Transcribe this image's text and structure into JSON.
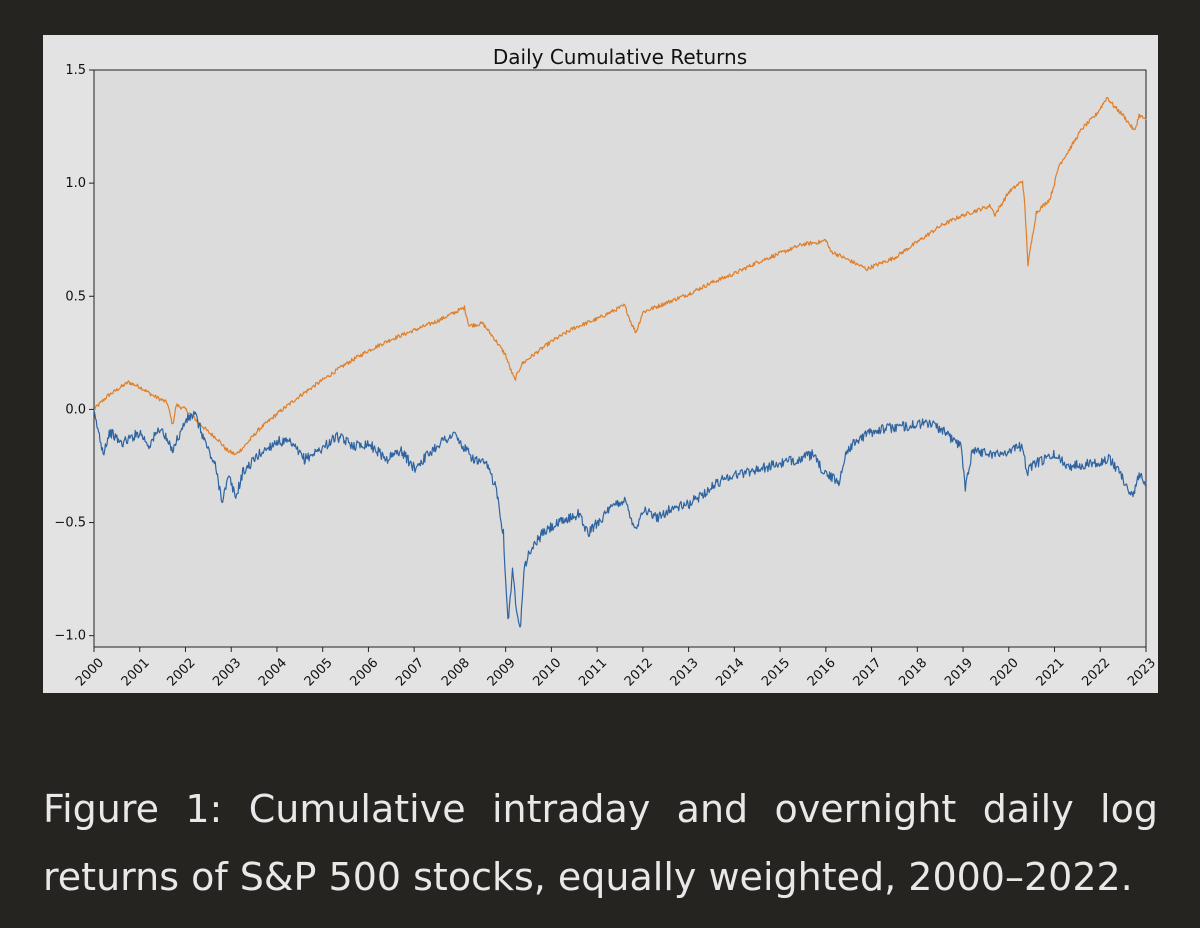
{
  "colors": {
    "page_background": "#262421",
    "panel_background": "#e3e3e3",
    "plot_background": "#dcdcdc",
    "caption_text": "#e8e8e8"
  },
  "chart_data": {
    "type": "line",
    "title": "Daily Cumulative Returns",
    "xlabel": "",
    "ylabel": "",
    "x_ticks": [
      "2000",
      "2001",
      "2002",
      "2003",
      "2004",
      "2005",
      "2006",
      "2007",
      "2008",
      "2009",
      "2010",
      "2011",
      "2012",
      "2013",
      "2014",
      "2015",
      "2016",
      "2017",
      "2018",
      "2019",
      "2020",
      "2021",
      "2022",
      "2023"
    ],
    "y_ticks": [
      -1.0,
      -0.5,
      0.0,
      0.5,
      1.0,
      1.5
    ],
    "y_tick_labels": [
      "−1.0",
      "−0.5",
      "0.0",
      "0.5",
      "1.0",
      "1.5"
    ],
    "xlim": [
      2000.0,
      2023.0
    ],
    "ylim": [
      -1.05,
      1.5
    ],
    "grid": false,
    "legend": "none",
    "series": [
      {
        "color": "#e07f27",
        "points": [
          [
            2000.0,
            0.0
          ],
          [
            2000.3,
            0.06
          ],
          [
            2000.6,
            0.1
          ],
          [
            2000.75,
            0.12
          ],
          [
            2001.0,
            0.1
          ],
          [
            2001.3,
            0.06
          ],
          [
            2001.6,
            0.03
          ],
          [
            2001.72,
            -0.07
          ],
          [
            2001.8,
            0.02
          ],
          [
            2002.0,
            0.0
          ],
          [
            2002.3,
            -0.06
          ],
          [
            2002.5,
            -0.1
          ],
          [
            2002.7,
            -0.13
          ],
          [
            2002.9,
            -0.18
          ],
          [
            2003.1,
            -0.2
          ],
          [
            2003.3,
            -0.16
          ],
          [
            2003.6,
            -0.09
          ],
          [
            2004.0,
            -0.02
          ],
          [
            2004.5,
            0.06
          ],
          [
            2005.0,
            0.13
          ],
          [
            2005.5,
            0.2
          ],
          [
            2006.0,
            0.26
          ],
          [
            2006.5,
            0.31
          ],
          [
            2007.0,
            0.35
          ],
          [
            2007.5,
            0.39
          ],
          [
            2007.9,
            0.43
          ],
          [
            2008.1,
            0.45
          ],
          [
            2008.2,
            0.37
          ],
          [
            2008.5,
            0.38
          ],
          [
            2008.8,
            0.3
          ],
          [
            2009.0,
            0.24
          ],
          [
            2009.1,
            0.18
          ],
          [
            2009.2,
            0.13
          ],
          [
            2009.35,
            0.2
          ],
          [
            2009.6,
            0.24
          ],
          [
            2010.0,
            0.3
          ],
          [
            2010.5,
            0.36
          ],
          [
            2011.0,
            0.4
          ],
          [
            2011.4,
            0.44
          ],
          [
            2011.6,
            0.46
          ],
          [
            2011.75,
            0.38
          ],
          [
            2011.85,
            0.34
          ],
          [
            2012.0,
            0.43
          ],
          [
            2012.5,
            0.47
          ],
          [
            2013.0,
            0.51
          ],
          [
            2013.5,
            0.56
          ],
          [
            2014.0,
            0.6
          ],
          [
            2014.5,
            0.65
          ],
          [
            2015.0,
            0.69
          ],
          [
            2015.5,
            0.73
          ],
          [
            2015.9,
            0.74
          ],
          [
            2016.0,
            0.75
          ],
          [
            2016.1,
            0.7
          ],
          [
            2016.5,
            0.66
          ],
          [
            2016.9,
            0.62
          ],
          [
            2017.0,
            0.63
          ],
          [
            2017.5,
            0.67
          ],
          [
            2018.0,
            0.74
          ],
          [
            2018.5,
            0.81
          ],
          [
            2018.9,
            0.85
          ],
          [
            2019.3,
            0.88
          ],
          [
            2019.6,
            0.9
          ],
          [
            2019.7,
            0.86
          ],
          [
            2020.0,
            0.96
          ],
          [
            2020.3,
            1.01
          ],
          [
            2020.35,
            0.9
          ],
          [
            2020.42,
            0.64
          ],
          [
            2020.6,
            0.87
          ],
          [
            2020.9,
            0.93
          ],
          [
            2021.0,
            1.0
          ],
          [
            2021.1,
            1.08
          ],
          [
            2021.3,
            1.14
          ],
          [
            2021.6,
            1.24
          ],
          [
            2021.9,
            1.3
          ],
          [
            2022.0,
            1.33
          ],
          [
            2022.15,
            1.38
          ],
          [
            2022.3,
            1.34
          ],
          [
            2022.5,
            1.3
          ],
          [
            2022.75,
            1.23
          ],
          [
            2022.85,
            1.3
          ],
          [
            2023.0,
            1.28
          ]
        ]
      },
      {
        "color": "#2f64a0",
        "points": [
          [
            2000.0,
            -0.02
          ],
          [
            2000.1,
            -0.1
          ],
          [
            2000.2,
            -0.19
          ],
          [
            2000.35,
            -0.1
          ],
          [
            2000.6,
            -0.15
          ],
          [
            2000.85,
            -0.12
          ],
          [
            2001.0,
            -0.1
          ],
          [
            2001.2,
            -0.16
          ],
          [
            2001.45,
            -0.08
          ],
          [
            2001.7,
            -0.18
          ],
          [
            2001.9,
            -0.1
          ],
          [
            2002.0,
            -0.05
          ],
          [
            2002.2,
            -0.02
          ],
          [
            2002.35,
            -0.1
          ],
          [
            2002.5,
            -0.18
          ],
          [
            2002.65,
            -0.25
          ],
          [
            2002.8,
            -0.4
          ],
          [
            2002.95,
            -0.3
          ],
          [
            2003.1,
            -0.39
          ],
          [
            2003.25,
            -0.28
          ],
          [
            2003.6,
            -0.2
          ],
          [
            2004.0,
            -0.14
          ],
          [
            2004.3,
            -0.15
          ],
          [
            2004.6,
            -0.22
          ],
          [
            2005.0,
            -0.17
          ],
          [
            2005.3,
            -0.12
          ],
          [
            2005.7,
            -0.16
          ],
          [
            2006.0,
            -0.15
          ],
          [
            2006.4,
            -0.22
          ],
          [
            2006.7,
            -0.18
          ],
          [
            2007.0,
            -0.26
          ],
          [
            2007.3,
            -0.2
          ],
          [
            2007.6,
            -0.14
          ],
          [
            2007.9,
            -0.11
          ],
          [
            2008.0,
            -0.15
          ],
          [
            2008.3,
            -0.22
          ],
          [
            2008.6,
            -0.25
          ],
          [
            2008.8,
            -0.35
          ],
          [
            2008.95,
            -0.55
          ],
          [
            2009.05,
            -0.94
          ],
          [
            2009.15,
            -0.72
          ],
          [
            2009.25,
            -0.9
          ],
          [
            2009.33,
            -0.95
          ],
          [
            2009.4,
            -0.7
          ],
          [
            2009.55,
            -0.62
          ],
          [
            2009.8,
            -0.55
          ],
          [
            2010.0,
            -0.52
          ],
          [
            2010.3,
            -0.49
          ],
          [
            2010.6,
            -0.46
          ],
          [
            2010.8,
            -0.55
          ],
          [
            2011.0,
            -0.5
          ],
          [
            2011.4,
            -0.42
          ],
          [
            2011.6,
            -0.4
          ],
          [
            2011.75,
            -0.48
          ],
          [
            2011.85,
            -0.53
          ],
          [
            2012.0,
            -0.44
          ],
          [
            2012.3,
            -0.48
          ],
          [
            2012.6,
            -0.44
          ],
          [
            2013.0,
            -0.42
          ],
          [
            2013.4,
            -0.36
          ],
          [
            2013.8,
            -0.3
          ],
          [
            2014.2,
            -0.28
          ],
          [
            2014.6,
            -0.26
          ],
          [
            2015.0,
            -0.24
          ],
          [
            2015.4,
            -0.22
          ],
          [
            2015.7,
            -0.2
          ],
          [
            2015.9,
            -0.26
          ],
          [
            2016.1,
            -0.3
          ],
          [
            2016.3,
            -0.32
          ],
          [
            2016.45,
            -0.18
          ],
          [
            2016.8,
            -0.12
          ],
          [
            2017.1,
            -0.09
          ],
          [
            2017.5,
            -0.08
          ],
          [
            2017.9,
            -0.07
          ],
          [
            2018.2,
            -0.06
          ],
          [
            2018.4,
            -0.07
          ],
          [
            2018.7,
            -0.12
          ],
          [
            2018.95,
            -0.16
          ],
          [
            2019.05,
            -0.34
          ],
          [
            2019.2,
            -0.18
          ],
          [
            2019.5,
            -0.19
          ],
          [
            2019.8,
            -0.2
          ],
          [
            2020.0,
            -0.18
          ],
          [
            2020.3,
            -0.16
          ],
          [
            2020.4,
            -0.28
          ],
          [
            2020.55,
            -0.24
          ],
          [
            2020.8,
            -0.22
          ],
          [
            2021.0,
            -0.2
          ],
          [
            2021.3,
            -0.25
          ],
          [
            2021.7,
            -0.24
          ],
          [
            2022.0,
            -0.23
          ],
          [
            2022.2,
            -0.22
          ],
          [
            2022.45,
            -0.28
          ],
          [
            2022.6,
            -0.36
          ],
          [
            2022.75,
            -0.37
          ],
          [
            2022.85,
            -0.28
          ],
          [
            2023.0,
            -0.32
          ]
        ]
      }
    ]
  },
  "caption": {
    "text": "Figure 1: Cumulative intraday and overnight daily log returns of S&P 500 stocks, equally weighted, 2000–2022."
  }
}
